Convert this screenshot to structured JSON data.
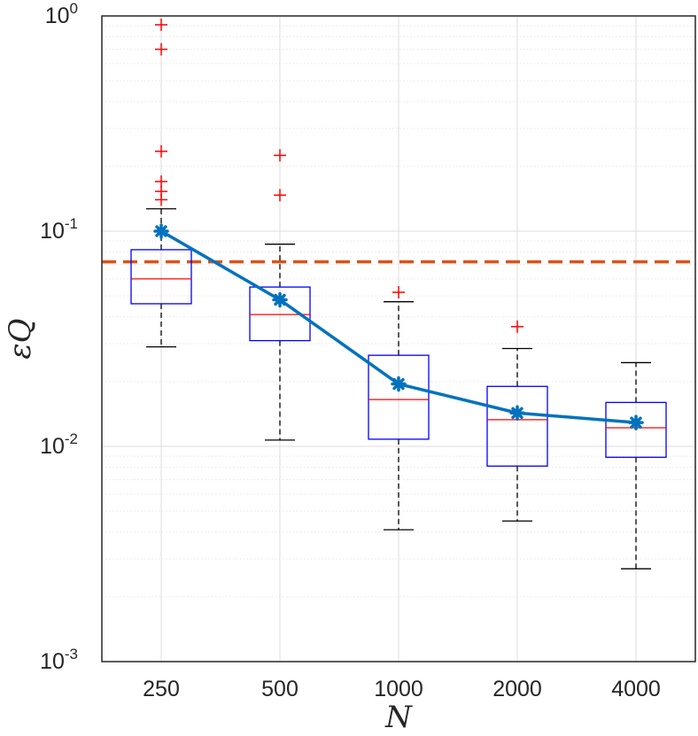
{
  "chart_data": {
    "type": "box",
    "xlabel": "N",
    "ylabel": "εQ",
    "yscale": "log",
    "ylim": [
      0.001,
      1
    ],
    "ytick_labels": [
      {
        "base": "10",
        "exp": "-3",
        "value": 0.001
      },
      {
        "base": "10",
        "exp": "-2",
        "value": 0.01
      },
      {
        "base": "10",
        "exp": "-1",
        "value": 0.1
      },
      {
        "base": "10",
        "exp": "0",
        "value": 1
      }
    ],
    "categories": [
      "250",
      "500",
      "1000",
      "2000",
      "4000"
    ],
    "grid": true,
    "boxes": [
      {
        "category": "250",
        "whisker_low": 0.029,
        "q1": 0.046,
        "median": 0.06,
        "q3": 0.082,
        "whisker_high": 0.127,
        "outliers": [
          0.91,
          0.7,
          0.235,
          0.17,
          0.153,
          0.14
        ]
      },
      {
        "category": "500",
        "whisker_low": 0.0107,
        "q1": 0.031,
        "median": 0.041,
        "q3": 0.055,
        "whisker_high": 0.087,
        "outliers": [
          0.225,
          0.147
        ]
      },
      {
        "category": "1000",
        "whisker_low": 0.0041,
        "q1": 0.0108,
        "median": 0.0165,
        "q3": 0.0265,
        "whisker_high": 0.047,
        "outliers": [
          0.052
        ]
      },
      {
        "category": "2000",
        "whisker_low": 0.0045,
        "q1": 0.0081,
        "median": 0.0133,
        "q3": 0.019,
        "whisker_high": 0.0285,
        "outliers": [
          0.036
        ]
      },
      {
        "category": "4000",
        "whisker_low": 0.0027,
        "q1": 0.0089,
        "median": 0.0122,
        "q3": 0.016,
        "whisker_high": 0.0245,
        "outliers": []
      }
    ],
    "mean_line": {
      "x": [
        "250",
        "500",
        "1000",
        "2000",
        "4000"
      ],
      "values": [
        0.1,
        0.048,
        0.0195,
        0.0143,
        0.0129
      ],
      "color": "#0072BD"
    },
    "reference_line": {
      "value": 0.072,
      "style": "dashed",
      "color": "#D95319"
    },
    "colors": {
      "box": "#0000FF",
      "median": "#FF0000",
      "outlier": "#FF0000",
      "whisker": "#000000",
      "grid": "#DCDCDC",
      "axis": "#262626"
    }
  }
}
